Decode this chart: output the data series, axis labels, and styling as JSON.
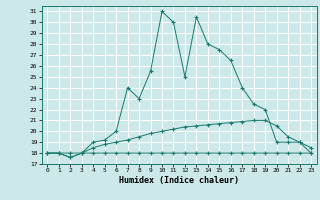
{
  "xlabel": "Humidex (Indice chaleur)",
  "xlim": [
    -0.5,
    23.5
  ],
  "ylim": [
    17,
    31.5
  ],
  "yticks": [
    17,
    18,
    19,
    20,
    21,
    22,
    23,
    24,
    25,
    26,
    27,
    28,
    29,
    30,
    31
  ],
  "xticks": [
    0,
    1,
    2,
    3,
    4,
    5,
    6,
    7,
    8,
    9,
    10,
    11,
    12,
    13,
    14,
    15,
    16,
    17,
    18,
    19,
    20,
    21,
    22,
    23
  ],
  "bg_color": "#cce8e8",
  "line_color": "#1a7a6e",
  "grid_color": "#b8d8d8",
  "series1_x": [
    0,
    1,
    2,
    3,
    4,
    5,
    6,
    7,
    8,
    9,
    10,
    11,
    12,
    13,
    14,
    15,
    16,
    17,
    18,
    19,
    20,
    21,
    22,
    23
  ],
  "series1_y": [
    18.0,
    18.0,
    17.6,
    18.0,
    18.0,
    18.0,
    18.0,
    18.0,
    18.0,
    18.0,
    18.0,
    18.0,
    18.0,
    18.0,
    18.0,
    18.0,
    18.0,
    18.0,
    18.0,
    18.0,
    18.0,
    18.0,
    18.0,
    18.0
  ],
  "series2_x": [
    0,
    1,
    2,
    3,
    4,
    5,
    6,
    7,
    8,
    9,
    10,
    11,
    12,
    13,
    14,
    15,
    16,
    17,
    18,
    19,
    20,
    21,
    22,
    23
  ],
  "series2_y": [
    18.0,
    18.0,
    18.0,
    18.0,
    18.5,
    18.8,
    19.0,
    19.2,
    19.5,
    19.8,
    20.0,
    20.2,
    20.4,
    20.5,
    20.6,
    20.7,
    20.8,
    20.9,
    21.0,
    21.0,
    20.5,
    19.5,
    19.0,
    18.5
  ],
  "series3_x": [
    0,
    1,
    2,
    3,
    4,
    5,
    6,
    7,
    8,
    9,
    10,
    11,
    12,
    13,
    14,
    15,
    16,
    17,
    18,
    19,
    20,
    21,
    22,
    23
  ],
  "series3_y": [
    18.0,
    18.0,
    17.6,
    18.0,
    19.0,
    19.2,
    20.0,
    24.0,
    23.0,
    25.5,
    31.0,
    30.0,
    25.0,
    30.5,
    28.0,
    27.5,
    26.5,
    24.0,
    22.5,
    22.0,
    19.0,
    19.0,
    19.0,
    18.0
  ]
}
